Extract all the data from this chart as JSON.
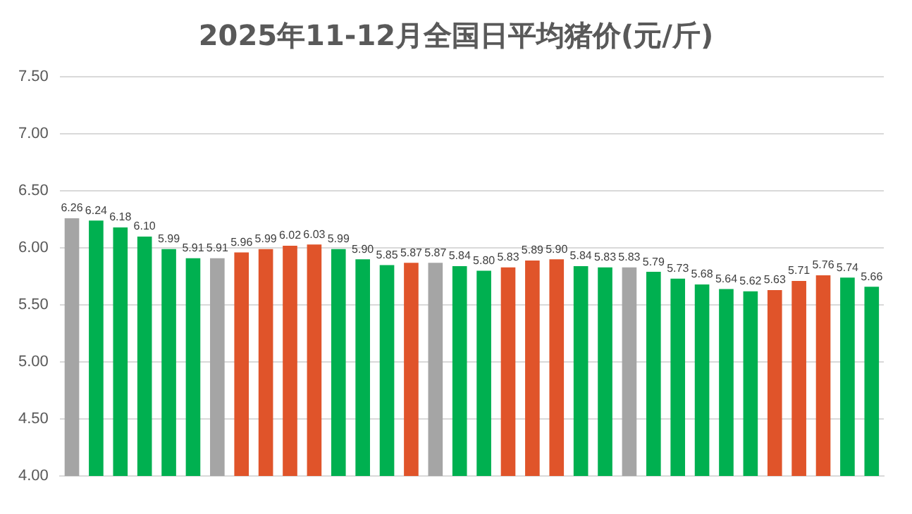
{
  "chart_data": {
    "type": "bar",
    "title": "2025年11-12月全国日平均猪价(元/斤)",
    "categories": [
      null,
      null,
      null,
      null,
      null,
      null,
      null,
      null,
      null,
      null,
      null,
      null,
      null,
      null,
      null,
      null,
      null,
      null,
      null,
      null,
      null,
      null,
      null,
      null,
      null,
      null,
      null,
      null,
      null,
      null,
      null,
      null,
      null,
      null
    ],
    "values": [
      6.26,
      6.24,
      6.18,
      6.1,
      5.99,
      5.91,
      5.91,
      5.96,
      5.99,
      6.02,
      6.03,
      5.99,
      5.9,
      5.85,
      5.87,
      5.87,
      5.84,
      5.8,
      5.83,
      5.89,
      5.9,
      5.84,
      5.83,
      5.83,
      5.79,
      5.73,
      5.68,
      5.64,
      5.62,
      5.63,
      5.71,
      5.76,
      5.74,
      5.66
    ],
    "value_labels": [
      "6.26",
      "6.24",
      "6.18",
      "6.10",
      "5.99",
      "5.91",
      "5.91",
      "5.96",
      "5.99",
      "6.02",
      "6.03",
      "5.99",
      "5.90",
      "5.85",
      "5.87",
      "5.87",
      "5.84",
      "5.80",
      "5.83",
      "5.89",
      "5.90",
      "5.84",
      "5.83",
      "5.83",
      "5.79",
      "5.73",
      "5.68",
      "5.64",
      "5.62",
      "5.63",
      "5.71",
      "5.76",
      "5.74",
      "5.66"
    ],
    "colors": [
      "#a5a5a5",
      "#00b050",
      "#00b050",
      "#00b050",
      "#00b050",
      "#00b050",
      "#a5a5a5",
      "#e0542a",
      "#e0542a",
      "#e0542a",
      "#e0542a",
      "#00b050",
      "#00b050",
      "#00b050",
      "#e0542a",
      "#a5a5a5",
      "#00b050",
      "#00b050",
      "#e0542a",
      "#e0542a",
      "#e0542a",
      "#00b050",
      "#00b050",
      "#a5a5a5",
      "#00b050",
      "#00b050",
      "#00b050",
      "#00b050",
      "#00b050",
      "#e0542a",
      "#e0542a",
      "#e0542a",
      "#00b050",
      "#00b050"
    ],
    "ylim": [
      4.0,
      7.5
    ],
    "yticks": [
      {
        "value": 4.0,
        "label": "4.00"
      },
      {
        "value": 4.5,
        "label": "4.50"
      },
      {
        "value": 5.0,
        "label": "5.00"
      },
      {
        "value": 5.5,
        "label": "5.50"
      },
      {
        "value": 6.0,
        "label": "6.00"
      },
      {
        "value": 6.5,
        "label": "6.50"
      },
      {
        "value": 7.0,
        "label": "7.00"
      },
      {
        "value": 7.5,
        "label": "7.50"
      }
    ],
    "grid": "y"
  }
}
